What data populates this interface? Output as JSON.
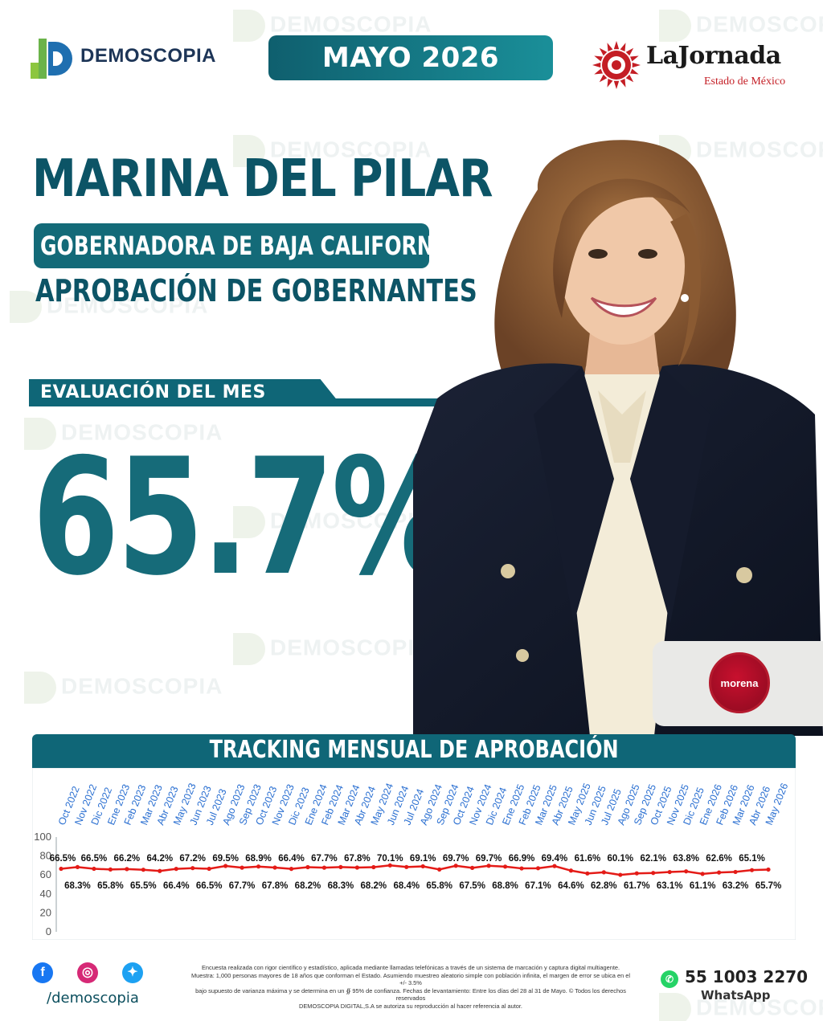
{
  "header": {
    "brand": "DEMOSCOPIA",
    "watermark": "DEMOSCOPIA",
    "month": "MAYO 2026",
    "partner_name": "LaJornada",
    "partner_sub": "Estado de México"
  },
  "hero": {
    "name": "MARINA DEL PILAR",
    "role": "GOBERNADORA DE BAJA CALIFORNIA",
    "subtitle": "APROBACIÓN DE GOBERNANTES",
    "eval_label": "EVALUACIÓN DEL MES",
    "approval": "65.7%",
    "party": "morena"
  },
  "colors": {
    "primary": "#0c5466",
    "accent": "#166b79",
    "line": "#e41b17",
    "party": "#c8102e"
  },
  "chart_data": {
    "type": "line",
    "title": "TRACKING MENSUAL DE APROBACIÓN",
    "categories": [
      "Oct 2022",
      "Nov 2022",
      "Dic 2022",
      "Ene 2023",
      "Feb 2023",
      "Mar 2023",
      "Abr 2023",
      "May 2023",
      "Jun 2023",
      "Jul 2023",
      "Ago 2023",
      "Sep 2023",
      "Oct 2023",
      "Nov 2023",
      "Dic 2023",
      "Ene 2024",
      "Feb 2024",
      "Mar 2024",
      "Abr 2024",
      "May 2024",
      "Jun 2024",
      "Jul 2024",
      "Ago 2024",
      "Sep 2024",
      "Oct 2024",
      "Nov 2024",
      "Dic 2024",
      "Ene 2025",
      "Feb 2025",
      "Mar 2025",
      "Abr 2025",
      "May 2025",
      "Jun 2025",
      "Jul 2025",
      "Ago 2025",
      "Sep 2025",
      "Oct 2025",
      "Nov 2025",
      "Dic 2025",
      "Ene 2026",
      "Feb 2026",
      "Mar 2026",
      "Abr 2026",
      "May 2026"
    ],
    "values": [
      66.5,
      68.3,
      66.5,
      65.8,
      66.2,
      65.5,
      64.2,
      66.4,
      67.2,
      66.5,
      69.5,
      67.7,
      68.9,
      67.8,
      66.4,
      68.2,
      67.7,
      68.3,
      67.8,
      68.2,
      70.1,
      68.4,
      69.1,
      65.8,
      69.7,
      67.5,
      69.7,
      68.8,
      66.9,
      67.1,
      69.4,
      64.6,
      61.6,
      62.8,
      60.1,
      61.7,
      62.1,
      63.1,
      63.8,
      61.1,
      62.6,
      63.2,
      65.1,
      65.7
    ],
    "data_labels": [
      "66.5%",
      "68.3%",
      "66.5%",
      "65.8%",
      "66.2%",
      "65.5%",
      "64.2%",
      "66.4%",
      "67.2%",
      "66.5%",
      "69.5%",
      "67.7%",
      "68.9%",
      "67.8%",
      "66.4%",
      "68.2%",
      "67.7%",
      "68.3%",
      "67.8%",
      "68.2%",
      "70.1%",
      "68.4%",
      "69.1%",
      "65.8%",
      "69.7%",
      "67.5%",
      "69.7%",
      "68.8%",
      "66.9%",
      "67.1%",
      "69.4%",
      "64.6%",
      "61.6%",
      "62.8%",
      "60.1%",
      "61.7%",
      "62.1%",
      "63.1%",
      "63.8%",
      "61.1%",
      "62.6%",
      "63.2%",
      "65.1%",
      "65.7%"
    ],
    "ylim": [
      0,
      100
    ],
    "yticks": [
      0,
      20,
      40,
      60,
      80,
      100
    ],
    "grid": false,
    "legend": "none"
  },
  "footer": {
    "handle": "/demoscopia",
    "disclaimer_1": "Encuesta realizada con rigor científico y estadístico, aplicada mediante llamadas telefónicas a través de un sistema de marcación y captura digital multiagente.",
    "disclaimer_2": "Muestra: 1,000 personas mayores de 18 años que conforman el Estado. Asumiendo muestreo aleatorio simple con población infinita, el margen de error se ubica en el +/- 3.5%",
    "disclaimer_3": "bajo supuesto de varianza máxima y se determina en un ∯ 95% de confianza. Fechas de levantamiento: Entre los días del 28 al 31 de Mayo. © Todos los derechos reservados",
    "disclaimer_4": "DEMOSCOPIA DIGITAL,S.A se autoriza su reproducción al hacer referencia al autor.",
    "phone": "55 1003 2270",
    "phone_label": "WhatsApp"
  }
}
